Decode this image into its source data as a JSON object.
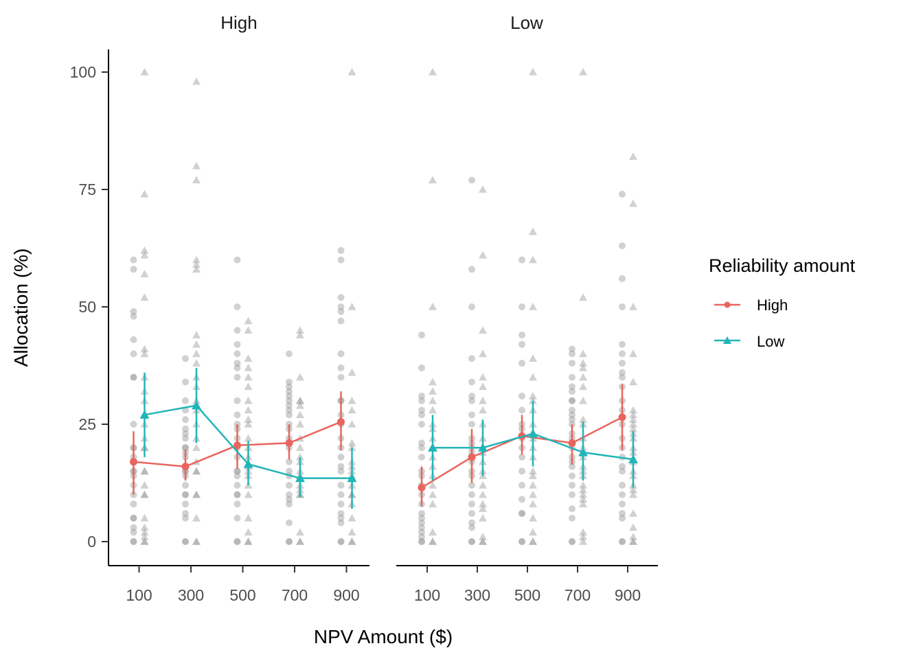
{
  "chart_data": {
    "type": "scatter",
    "xlabel": "NPV Amount ($)",
    "ylabel": "Allocation (%)",
    "ylim": [
      -5,
      105
    ],
    "yticks": [
      0,
      25,
      50,
      75,
      100
    ],
    "xticks": [
      100,
      300,
      500,
      700,
      900
    ],
    "grid": false,
    "legend": {
      "title": "Reliability amount",
      "position": "right",
      "entries": [
        {
          "label": "High",
          "color": "#e8655d",
          "shape": "circle"
        },
        {
          "label": "Low",
          "color": "#22b5b8",
          "shape": "triangle"
        }
      ]
    },
    "raw_point_color": "#9a9a9a",
    "panels": [
      {
        "title": "High",
        "series": [
          {
            "name": "High",
            "x": [
              100,
              300,
              500,
              700,
              900
            ],
            "mean": [
              17.0,
              16.0,
              20.5,
              21.0,
              25.5
            ],
            "lower": [
              10.0,
              13.0,
              15.5,
              17.5,
              19.5
            ],
            "upper": [
              23.5,
              19.5,
              25.0,
              25.0,
              32.0
            ]
          },
          {
            "name": "Low",
            "x": [
              100,
              300,
              500,
              700,
              900
            ],
            "mean": [
              27.0,
              29.0,
              16.5,
              13.5,
              13.5
            ],
            "lower": [
              18.0,
              21.0,
              12.0,
              9.5,
              7.0
            ],
            "upper": [
              36.0,
              37.0,
              21.5,
              18.0,
              20.0
            ]
          }
        ],
        "raw": [
          {
            "x": 100,
            "group": "High",
            "values": [
              0,
              0,
              2,
              3,
              5,
              5,
              8,
              10,
              12,
              14,
              15,
              15,
              18,
              20,
              20,
              25,
              35,
              35,
              40,
              43,
              48,
              49,
              58,
              60
            ]
          },
          {
            "x": 100,
            "group": "Low",
            "values": [
              0,
              0,
              1,
              2,
              3,
              5,
              10,
              10,
              12,
              15,
              15,
              20,
              20,
              22,
              25,
              30,
              32,
              35,
              40,
              41,
              52,
              57,
              61,
              62,
              74,
              100
            ]
          },
          {
            "x": 300,
            "group": "High",
            "values": [
              0,
              0,
              5,
              6,
              8,
              10,
              10,
              12,
              14,
              15,
              15,
              18,
              19,
              20,
              20,
              22,
              23,
              24,
              26,
              28,
              30,
              34,
              39
            ]
          },
          {
            "x": 300,
            "group": "Low",
            "values": [
              0,
              0,
              5,
              10,
              10,
              15,
              15,
              17,
              20,
              22,
              25,
              28,
              30,
              33,
              35,
              38,
              40,
              42,
              44,
              58,
              59,
              60,
              77,
              80,
              98
            ]
          },
          {
            "x": 500,
            "group": "High",
            "values": [
              0,
              0,
              5,
              8,
              10,
              10,
              12,
              14,
              15,
              15,
              18,
              20,
              22,
              24,
              25,
              27,
              30,
              35,
              37,
              38,
              40,
              42,
              45,
              50,
              60
            ]
          },
          {
            "x": 500,
            "group": "Low",
            "values": [
              0,
              0,
              2,
              5,
              10,
              12,
              14,
              15,
              16,
              18,
              20,
              22,
              25,
              26,
              28,
              30,
              33,
              35,
              37,
              39,
              45,
              47
            ]
          },
          {
            "x": 700,
            "group": "High",
            "values": [
              0,
              0,
              4,
              8,
              9,
              10,
              12,
              14,
              15,
              17,
              20,
              22,
              24,
              25,
              27,
              28,
              29,
              30,
              31,
              32,
              33,
              34,
              40
            ]
          },
          {
            "x": 700,
            "group": "Low",
            "values": [
              0,
              0,
              2,
              10,
              10,
              11,
              12,
              14,
              15,
              17,
              18,
              20,
              22,
              25,
              27,
              29,
              30,
              30,
              35,
              44,
              45
            ]
          },
          {
            "x": 900,
            "group": "High",
            "values": [
              0,
              0,
              4,
              5,
              6,
              8,
              10,
              12,
              15,
              16,
              18,
              20,
              22,
              25,
              27,
              30,
              30,
              35,
              37,
              40,
              47,
              49,
              50,
              52,
              60,
              62
            ]
          },
          {
            "x": 900,
            "group": "Low",
            "values": [
              0,
              0,
              2,
              5,
              8,
              10,
              10,
              12,
              14,
              15,
              16,
              17,
              20,
              21,
              25,
              28,
              30,
              36,
              50,
              100
            ]
          }
        ]
      },
      {
        "title": "Low",
        "series": [
          {
            "name": "High",
            "x": [
              100,
              300,
              500,
              700,
              900
            ],
            "mean": [
              11.5,
              18.0,
              22.5,
              21.0,
              26.5
            ],
            "lower": [
              7.5,
              12.5,
              18.5,
              16.5,
              19.5
            ],
            "upper": [
              16.0,
              24.0,
              27.0,
              25.0,
              33.5
            ]
          },
          {
            "name": "Low",
            "x": [
              100,
              300,
              500,
              700,
              900
            ],
            "mean": [
              20.0,
              20.0,
              23.0,
              19.0,
              17.5
            ],
            "lower": [
              13.0,
              14.0,
              16.0,
              13.0,
              11.5
            ],
            "upper": [
              27.0,
              26.0,
              30.0,
              25.5,
              23.5
            ]
          }
        ],
        "raw": [
          {
            "x": 100,
            "group": "High",
            "values": [
              0,
              0,
              1,
              2,
              3,
              4,
              5,
              6,
              8,
              10,
              12,
              14,
              15,
              18,
              20,
              21,
              25,
              27,
              28,
              30,
              31,
              37,
              44
            ]
          },
          {
            "x": 100,
            "group": "Low",
            "values": [
              0,
              0,
              2,
              8,
              10,
              12,
              14,
              16,
              18,
              20,
              22,
              24,
              25,
              28,
              30,
              32,
              34,
              50,
              77,
              100
            ]
          },
          {
            "x": 300,
            "group": "High",
            "values": [
              0,
              0,
              3,
              4,
              6,
              8,
              10,
              12,
              14,
              15,
              17,
              19,
              20,
              21,
              22,
              25,
              27,
              30,
              31,
              34,
              39,
              50,
              58,
              77
            ]
          },
          {
            "x": 300,
            "group": "Low",
            "values": [
              0,
              0,
              1,
              5,
              7,
              8,
              10,
              12,
              14,
              15,
              17,
              19,
              20,
              22,
              25,
              28,
              30,
              33,
              35,
              40,
              45,
              61,
              75
            ]
          },
          {
            "x": 500,
            "group": "High",
            "values": [
              0,
              0,
              6,
              6,
              9,
              12,
              15,
              18,
              20,
              22,
              24,
              25,
              28,
              31,
              38,
              42,
              44,
              50,
              60
            ]
          },
          {
            "x": 500,
            "group": "Low",
            "values": [
              0,
              0,
              2,
              5,
              8,
              10,
              12,
              14,
              15,
              18,
              20,
              22,
              25,
              28,
              30,
              31,
              35,
              39,
              50,
              60,
              66,
              100
            ]
          },
          {
            "x": 700,
            "group": "High",
            "values": [
              0,
              0,
              5,
              7,
              10,
              12,
              14,
              16,
              17,
              18,
              20,
              22,
              23,
              25,
              26,
              27,
              28,
              30,
              30,
              32,
              33,
              35,
              38,
              40,
              41
            ]
          },
          {
            "x": 700,
            "group": "Low",
            "values": [
              0,
              1,
              2,
              8,
              9,
              10,
              11,
              12,
              14,
              15,
              16,
              18,
              20,
              22,
              25,
              26,
              30,
              33,
              35,
              37,
              38,
              40,
              52,
              100
            ]
          },
          {
            "x": 900,
            "group": "High",
            "values": [
              0,
              0,
              5,
              6,
              8,
              10,
              12,
              15,
              16,
              18,
              20,
              22,
              25,
              28,
              30,
              33,
              35,
              36,
              38,
              40,
              42,
              50,
              56,
              63,
              74
            ]
          },
          {
            "x": 900,
            "group": "Low",
            "values": [
              0,
              0,
              1,
              3,
              6,
              10,
              11,
              12,
              14,
              15,
              17,
              19,
              20,
              22,
              23,
              24,
              25,
              26,
              27,
              28,
              34,
              40,
              50,
              72,
              82
            ]
          }
        ]
      }
    ]
  }
}
